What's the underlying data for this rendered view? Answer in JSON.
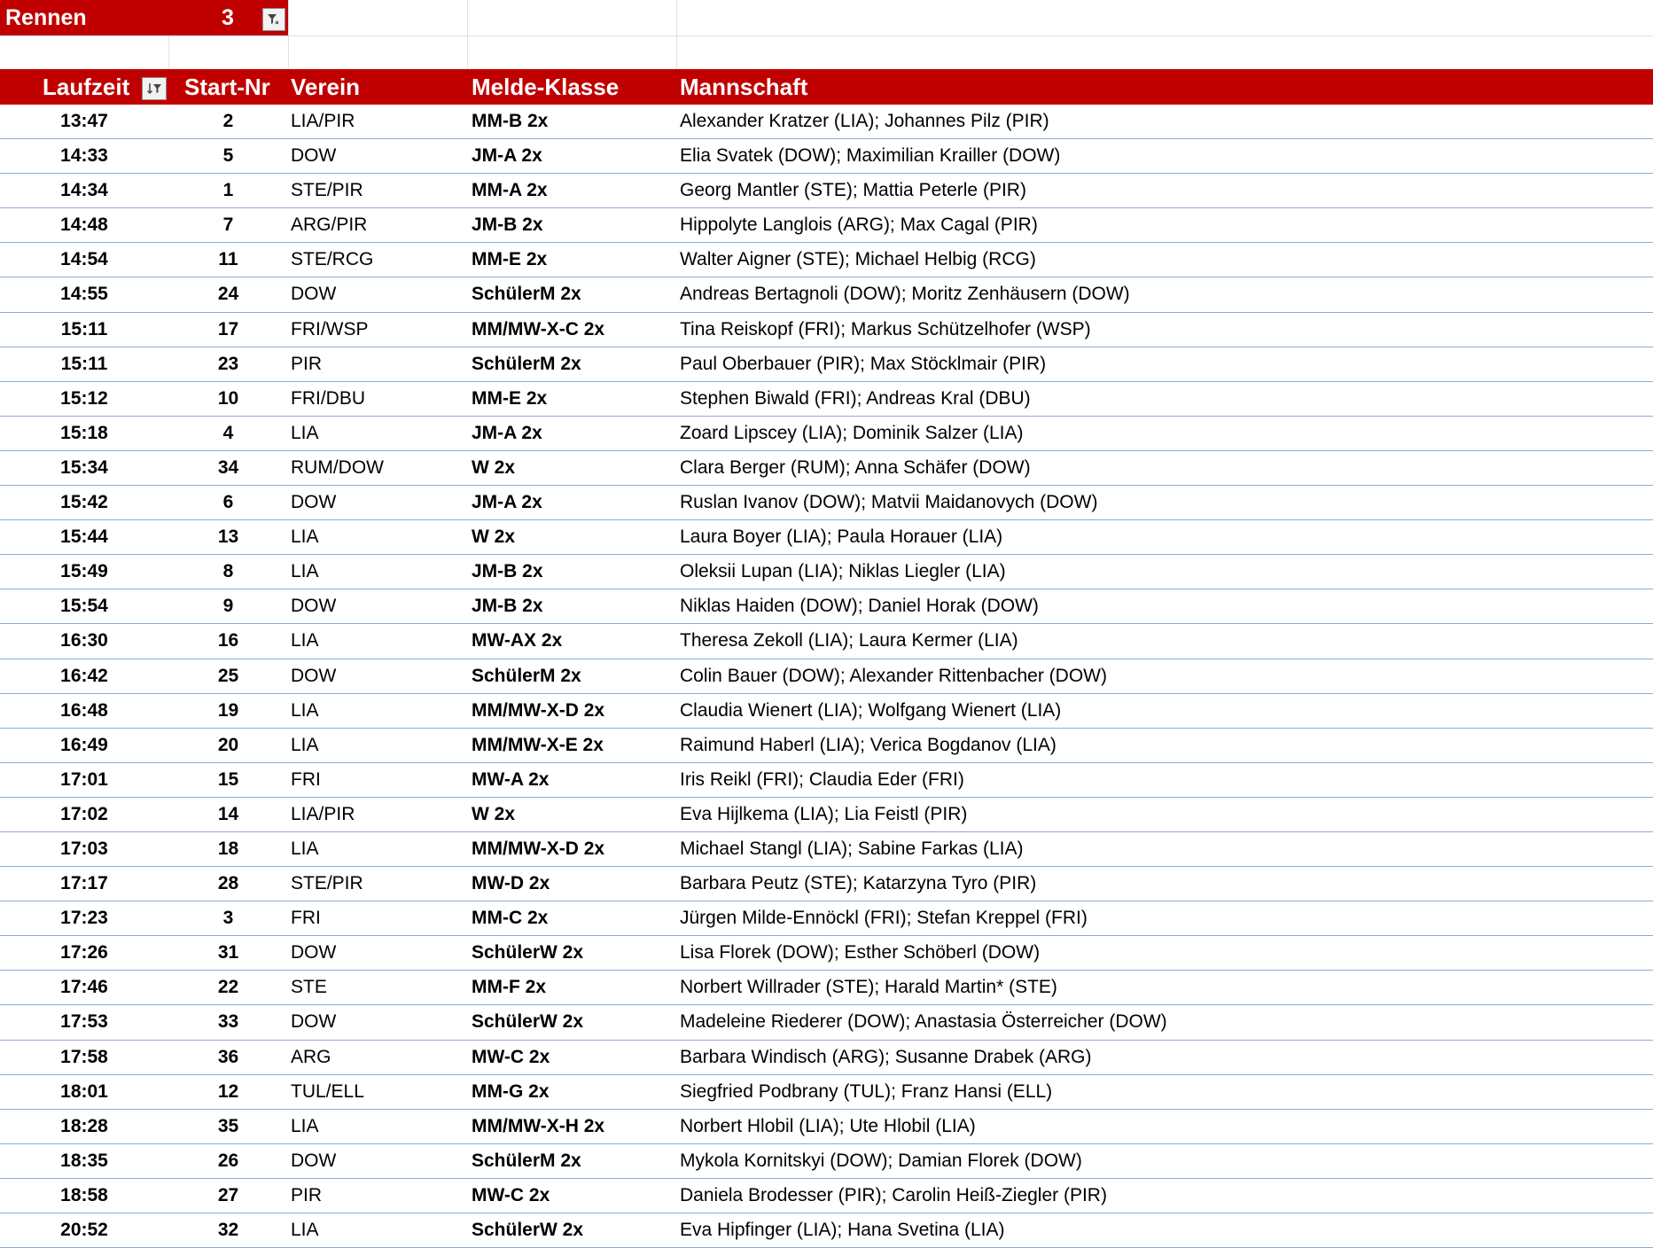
{
  "filter": {
    "label": "Rennen",
    "value": "3",
    "icon": "filter-dropdown-icon"
  },
  "header": {
    "time": "Laufzeit",
    "start_nr": "Start-Nr",
    "club": "Verein",
    "class": "Melde-Klasse",
    "crew": "Mannschaft",
    "sort_icon": "sort-ascending-filter-icon"
  },
  "colors": {
    "accent": "#c00000",
    "row_border": "#8eaadb"
  },
  "rows": [
    {
      "time": "13:47",
      "nr": "2",
      "club": "LIA/PIR",
      "class": "MM-B 2x",
      "crew": "Alexander Kratzer (LIA); Johannes Pilz (PIR)"
    },
    {
      "time": "14:33",
      "nr": "5",
      "club": "DOW",
      "class": "JM-A 2x",
      "crew": "Elia Svatek (DOW); Maximilian Krailler (DOW)"
    },
    {
      "time": "14:34",
      "nr": "1",
      "club": "STE/PIR",
      "class": "MM-A 2x",
      "crew": "Georg Mantler (STE); Mattia Peterle (PIR)"
    },
    {
      "time": "14:48",
      "nr": "7",
      "club": "ARG/PIR",
      "class": "JM-B 2x",
      "crew": "Hippolyte Langlois (ARG); Max Cagal (PIR)"
    },
    {
      "time": "14:54",
      "nr": "11",
      "club": "STE/RCG",
      "class": "MM-E 2x",
      "crew": "Walter Aigner (STE); Michael Helbig (RCG)"
    },
    {
      "time": "14:55",
      "nr": "24",
      "club": "DOW",
      "class": "SchülerM 2x",
      "crew": "Andreas Bertagnoli (DOW); Moritz Zenhäusern (DOW)"
    },
    {
      "time": "15:11",
      "nr": "17",
      "club": "FRI/WSP",
      "class": "MM/MW-X-C 2x",
      "crew": "Tina Reiskopf (FRI); Markus Schützelhofer (WSP)"
    },
    {
      "time": "15:11",
      "nr": "23",
      "club": "PIR",
      "class": "SchülerM 2x",
      "crew": "Paul Oberbauer (PIR); Max Stöcklmair (PIR)"
    },
    {
      "time": "15:12",
      "nr": "10",
      "club": "FRI/DBU",
      "class": "MM-E 2x",
      "crew": "Stephen Biwald (FRI); Andreas Kral (DBU)"
    },
    {
      "time": "15:18",
      "nr": "4",
      "club": "LIA",
      "class": "JM-A 2x",
      "crew": "Zoard Lipscey (LIA); Dominik Salzer (LIA)"
    },
    {
      "time": "15:34",
      "nr": "34",
      "club": "RUM/DOW",
      "class": "W 2x",
      "crew": "Clara Berger (RUM); Anna Schäfer (DOW)"
    },
    {
      "time": "15:42",
      "nr": "6",
      "club": "DOW",
      "class": "JM-A 2x",
      "crew": "Ruslan Ivanov (DOW); Matvii Maidanovych (DOW)"
    },
    {
      "time": "15:44",
      "nr": "13",
      "club": "LIA",
      "class": "W 2x",
      "crew": "Laura Boyer (LIA); Paula Horauer (LIA)"
    },
    {
      "time": "15:49",
      "nr": "8",
      "club": "LIA",
      "class": "JM-B 2x",
      "crew": "Oleksii Lupan (LIA); Niklas Liegler (LIA)"
    },
    {
      "time": "15:54",
      "nr": "9",
      "club": "DOW",
      "class": "JM-B 2x",
      "crew": "Niklas Haiden (DOW); Daniel Horak (DOW)"
    },
    {
      "time": "16:30",
      "nr": "16",
      "club": "LIA",
      "class": "MW-AX 2x",
      "crew": "Theresa Zekoll (LIA); Laura Kermer (LIA)"
    },
    {
      "time": "16:42",
      "nr": "25",
      "club": "DOW",
      "class": "SchülerM 2x",
      "crew": "Colin Bauer (DOW); Alexander Rittenbacher (DOW)"
    },
    {
      "time": "16:48",
      "nr": "19",
      "club": "LIA",
      "class": "MM/MW-X-D 2x",
      "crew": "Claudia Wienert (LIA); Wolfgang Wienert (LIA)"
    },
    {
      "time": "16:49",
      "nr": "20",
      "club": "LIA",
      "class": "MM/MW-X-E 2x",
      "crew": "Raimund Haberl (LIA); Verica Bogdanov (LIA)"
    },
    {
      "time": "17:01",
      "nr": "15",
      "club": "FRI",
      "class": "MW-A 2x",
      "crew": "Iris Reikl (FRI); Claudia Eder (FRI)"
    },
    {
      "time": "17:02",
      "nr": "14",
      "club": "LIA/PIR",
      "class": "W 2x",
      "crew": "Eva Hijlkema (LIA); Lia Feistl (PIR)"
    },
    {
      "time": "17:03",
      "nr": "18",
      "club": "LIA",
      "class": "MM/MW-X-D 2x",
      "crew": "Michael Stangl (LIA); Sabine Farkas (LIA)"
    },
    {
      "time": "17:17",
      "nr": "28",
      "club": "STE/PIR",
      "class": "MW-D 2x",
      "crew": "Barbara Peutz (STE); Katarzyna Tyro (PIR)"
    },
    {
      "time": "17:23",
      "nr": "3",
      "club": "FRI",
      "class": "MM-C 2x",
      "crew": "Jürgen Milde-Ennöckl (FRI); Stefan Kreppel (FRI)"
    },
    {
      "time": "17:26",
      "nr": "31",
      "club": "DOW",
      "class": "SchülerW 2x",
      "crew": "Lisa Florek (DOW); Esther Schöberl (DOW)"
    },
    {
      "time": "17:46",
      "nr": "22",
      "club": "STE",
      "class": "MM-F 2x",
      "crew": "Norbert Willrader (STE); Harald Martin* (STE)"
    },
    {
      "time": "17:53",
      "nr": "33",
      "club": "DOW",
      "class": "SchülerW 2x",
      "crew": "Madeleine Riederer (DOW); Anastasia Österreicher (DOW)"
    },
    {
      "time": "17:58",
      "nr": "36",
      "club": "ARG",
      "class": "MW-C 2x",
      "crew": "Barbara Windisch (ARG); Susanne Drabek (ARG)"
    },
    {
      "time": "18:01",
      "nr": "12",
      "club": "TUL/ELL",
      "class": "MM-G 2x",
      "crew": "Siegfried Podbrany (TUL); Franz Hansi (ELL)"
    },
    {
      "time": "18:28",
      "nr": "35",
      "club": "LIA",
      "class": "MM/MW-X-H 2x",
      "crew": "Norbert Hlobil (LIA); Ute Hlobil (LIA)"
    },
    {
      "time": "18:35",
      "nr": "26",
      "club": "DOW",
      "class": "SchülerM 2x",
      "crew": "Mykola Kornitskyi (DOW); Damian Florek (DOW)"
    },
    {
      "time": "18:58",
      "nr": "27",
      "club": "PIR",
      "class": "MW-C 2x",
      "crew": "Daniela Brodesser (PIR); Carolin Heiß-Ziegler (PIR)"
    },
    {
      "time": "20:52",
      "nr": "32",
      "club": "LIA",
      "class": "SchülerW 2x",
      "crew": "Eva Hipfinger (LIA); Hana Svetina (LIA)"
    }
  ]
}
